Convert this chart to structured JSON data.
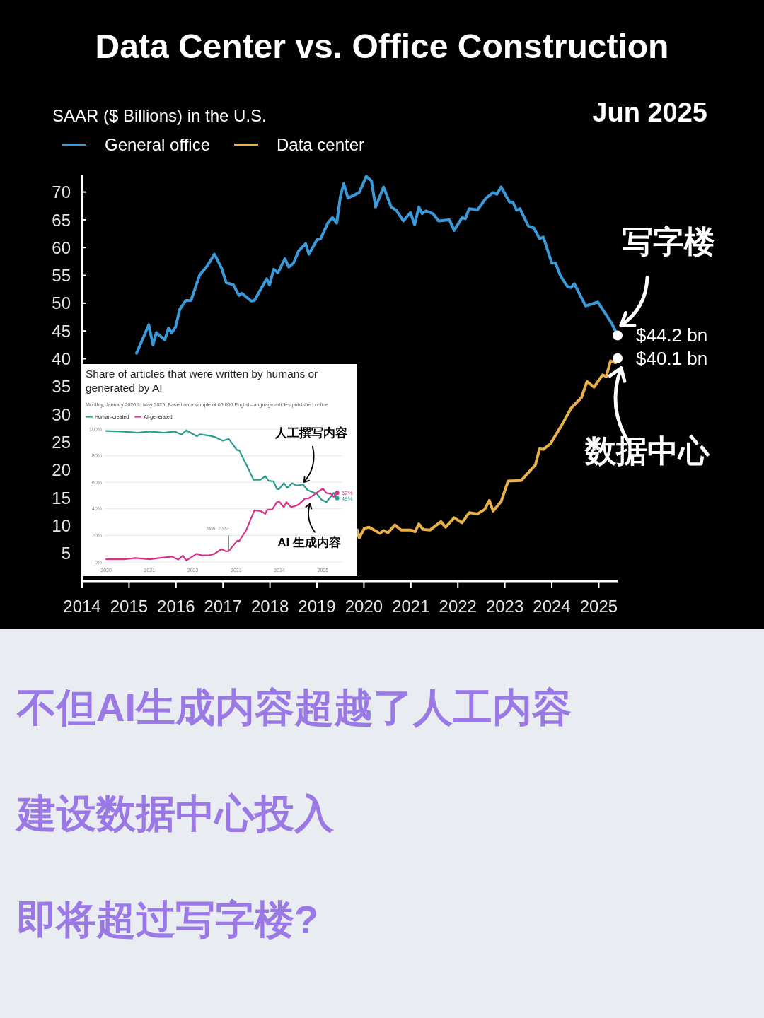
{
  "chart_data": [
    {
      "type": "line",
      "title": "Data Center vs. Office Construction",
      "subtitle": "Jun 2025",
      "ylabel": "SAAR ($ Billions) in the U.S.",
      "legend": "top left",
      "grid": false,
      "xlim": [
        2014,
        2025.4
      ],
      "xticks": [
        2014,
        2015,
        2016,
        2017,
        2018,
        2019,
        2020,
        2021,
        2022,
        2023,
        2024,
        2025
      ],
      "ylim": [
        0,
        73
      ],
      "yticks": [
        5,
        10,
        15,
        20,
        25,
        30,
        35,
        40,
        45,
        50,
        55,
        60,
        65,
        70
      ],
      "series": [
        {
          "name": "General office",
          "color": "#3a9ad9",
          "x": [
            2015.16,
            2015.42,
            2015.51,
            2015.58,
            2015.76,
            2015.84,
            2015.91,
            2015.99,
            2016.08,
            2016.21,
            2016.32,
            2016.5,
            2016.67,
            2016.82,
            2016.97,
            2017.07,
            2017.22,
            2017.34,
            2017.4,
            2017.6,
            2017.67,
            2017.93,
            2017.99,
            2018.08,
            2018.17,
            2018.32,
            2018.4,
            2018.5,
            2018.61,
            2018.76,
            2018.83,
            2019.0,
            2019.08,
            2019.23,
            2019.33,
            2019.42,
            2019.5,
            2019.57,
            2019.66,
            2019.9,
            2020.05,
            2020.16,
            2020.25,
            2020.42,
            2020.58,
            2020.69,
            2020.84,
            2020.99,
            2021.08,
            2021.17,
            2021.24,
            2021.32,
            2021.47,
            2021.59,
            2021.82,
            2021.92,
            2022.09,
            2022.16,
            2022.24,
            2022.42,
            2022.6,
            2022.75,
            2022.83,
            2022.92,
            2023.1,
            2023.17,
            2023.25,
            2023.32,
            2023.5,
            2023.62,
            2023.74,
            2023.82,
            2024.0,
            2024.08,
            2024.18,
            2024.33,
            2024.41,
            2024.48,
            2024.72,
            2024.98,
            2025.05,
            2025.28,
            2025.4
          ],
          "values": [
            41.0,
            46.1,
            42.5,
            44.7,
            43.4,
            45.5,
            44.7,
            45.7,
            48.9,
            50.5,
            50.5,
            55.0,
            56.8,
            58.8,
            56.3,
            53.7,
            53.3,
            51.4,
            51.8,
            50.4,
            50.5,
            54.4,
            53.3,
            56.1,
            55.5,
            58.0,
            56.5,
            57.2,
            59.4,
            60.7,
            58.8,
            61.4,
            61.6,
            64.4,
            65.4,
            64.4,
            69.2,
            71.5,
            68.9,
            69.9,
            72.8,
            72.0,
            67.3,
            70.9,
            67.3,
            66.7,
            64.8,
            66.3,
            64.1,
            67.3,
            66.1,
            66.6,
            66.1,
            64.8,
            65.0,
            63.1,
            65.4,
            65.2,
            67.0,
            66.8,
            68.9,
            69.9,
            69.6,
            70.9,
            68.2,
            68.2,
            66.7,
            67.0,
            63.9,
            63.5,
            61.6,
            61.9,
            57.2,
            57.2,
            55.0,
            53.0,
            52.8,
            53.5,
            49.5,
            50.2,
            49.3,
            46.3,
            44.2
          ]
        },
        {
          "name": "Data center",
          "color": "#e8b04a",
          "x": [
            2019.86,
            2019.9,
            2020.01,
            2020.11,
            2020.34,
            2020.42,
            2020.51,
            2020.66,
            2020.79,
            2020.99,
            2021.09,
            2021.17,
            2021.26,
            2021.41,
            2021.64,
            2021.74,
            2021.92,
            2022.09,
            2022.24,
            2022.42,
            2022.57,
            2022.67,
            2022.75,
            2022.92,
            2023.07,
            2023.35,
            2023.65,
            2023.74,
            2023.82,
            2023.97,
            2024.2,
            2024.41,
            2024.63,
            2024.75,
            2024.9,
            2025.08,
            2025.16,
            2025.25,
            2025.36,
            2025.4
          ],
          "values": [
            9.2,
            7.8,
            9.5,
            9.7,
            8.6,
            9.1,
            8.7,
            10.1,
            9.2,
            9.2,
            8.9,
            10.3,
            9.3,
            9.2,
            10.7,
            9.7,
            11.4,
            10.5,
            12.3,
            12.1,
            12.9,
            14.5,
            12.6,
            14.3,
            18.0,
            18.1,
            20.9,
            23.8,
            23.7,
            24.7,
            27.9,
            31.1,
            33.0,
            35.9,
            34.9,
            37.1,
            36.8,
            39.6,
            39.3,
            40.1
          ]
        }
      ],
      "annotations": [
        {
          "text": "写字楼",
          "x": 2025.4,
          "y": 44.2
        },
        {
          "text": "数据中心",
          "x": 2025.4,
          "y": 40.1
        },
        {
          "text": "$44.2 bn",
          "x": 2025.4,
          "y": 44.2
        },
        {
          "text": "$40.1 bn",
          "x": 2025.4,
          "y": 40.1
        },
        "不但AI生成内容超越了人工内容",
        "建设数据中心投入",
        "即将超过写字楼?"
      ]
    },
    {
      "type": "line",
      "title": "Share of articles that were written by humans or generated by AI",
      "subtitle": "Monthly, January 2020 to May 2025; Based on a sample of 65,000 English-language articles published online",
      "legend": "top left",
      "grid": "y",
      "xlim": [
        2019.95,
        2025.45
      ],
      "xticks": [
        2020,
        2021,
        2022,
        2023,
        2024,
        2025
      ],
      "ylim": [
        0,
        100
      ],
      "yticks": [
        {
          "value": 0,
          "label": "0%"
        },
        {
          "value": 20,
          "label": "20%"
        },
        {
          "value": 40,
          "label": "40%"
        },
        {
          "value": 60,
          "label": "60%"
        },
        {
          "value": 80,
          "label": "80%"
        },
        {
          "value": 100,
          "label": "100%"
        }
      ],
      "ref_lines": [
        {
          "axis": "x",
          "value": 2022.83,
          "label": "Nov. 2022",
          "color": "#888888"
        }
      ],
      "series": [
        {
          "name": "Human-created",
          "color": "#2a9d8f",
          "x": [
            2020.0,
            2020.35,
            2020.73,
            2021.01,
            2021.33,
            2021.58,
            2021.74,
            2021.85,
            2022.09,
            2022.17,
            2022.39,
            2022.53,
            2022.69,
            2022.83,
            2023.02,
            2023.07,
            2023.23,
            2023.4,
            2023.56,
            2023.67,
            2023.75,
            2023.86,
            2023.94,
            2023.99,
            2024.1,
            2024.18,
            2024.29,
            2024.4,
            2024.54,
            2024.65,
            2024.73,
            2024.86,
            2024.97,
            2025.08,
            2025.16,
            2025.25,
            2025.33
          ],
          "values": [
            98.6,
            98.2,
            97.3,
            98.2,
            97.3,
            98.2,
            95.9,
            99.1,
            94.7,
            96.1,
            95.0,
            93.8,
            91.2,
            92.6,
            84.1,
            84.1,
            73.5,
            61.9,
            61.9,
            64.6,
            61.1,
            60.7,
            54.9,
            54.9,
            59.3,
            55.8,
            59.3,
            57.5,
            58.4,
            54.0,
            53.1,
            51.3,
            46.9,
            45.1,
            48.3,
            52,
            48
          ]
        },
        {
          "name": "AI-generated",
          "color": "#d6338a",
          "x": [
            2020.0,
            2020.41,
            2020.68,
            2021.01,
            2021.22,
            2021.52,
            2021.66,
            2021.77,
            2021.85,
            2022.09,
            2022.2,
            2022.39,
            2022.5,
            2022.66,
            2022.77,
            2022.83,
            2023.02,
            2023.07,
            2023.23,
            2023.42,
            2023.56,
            2023.67,
            2023.72,
            2023.83,
            2023.94,
            2023.99,
            2024.1,
            2024.16,
            2024.27,
            2024.43,
            2024.59,
            2024.67,
            2024.86,
            2025.0,
            2025.08,
            2025.19,
            2025.25,
            2025.33
          ],
          "values": [
            2.1,
            2.1,
            3.0,
            2.1,
            3.0,
            4.1,
            1.8,
            4.8,
            1.2,
            6.2,
            5.0,
            5.1,
            6.2,
            9.7,
            8.0,
            8.3,
            15.9,
            15.9,
            23.9,
            38.9,
            38.4,
            36.3,
            39.5,
            39.5,
            45.1,
            45.5,
            41.2,
            45.1,
            41.2,
            43.0,
            47.8,
            47.8,
            52.2,
            55.2,
            51.9,
            51.3,
            49.0,
            52
          ]
        }
      ],
      "annotations": [
        {
          "text": "人工撰写内容",
          "x": 2024.6,
          "y": 56
        },
        {
          "text": "AI 生成内容",
          "x": 2024.7,
          "y": 47
        },
        {
          "text": "52%",
          "x": 2025.33,
          "y": 52
        },
        {
          "text": "48%",
          "x": 2025.33,
          "y": 48
        }
      ]
    }
  ]
}
